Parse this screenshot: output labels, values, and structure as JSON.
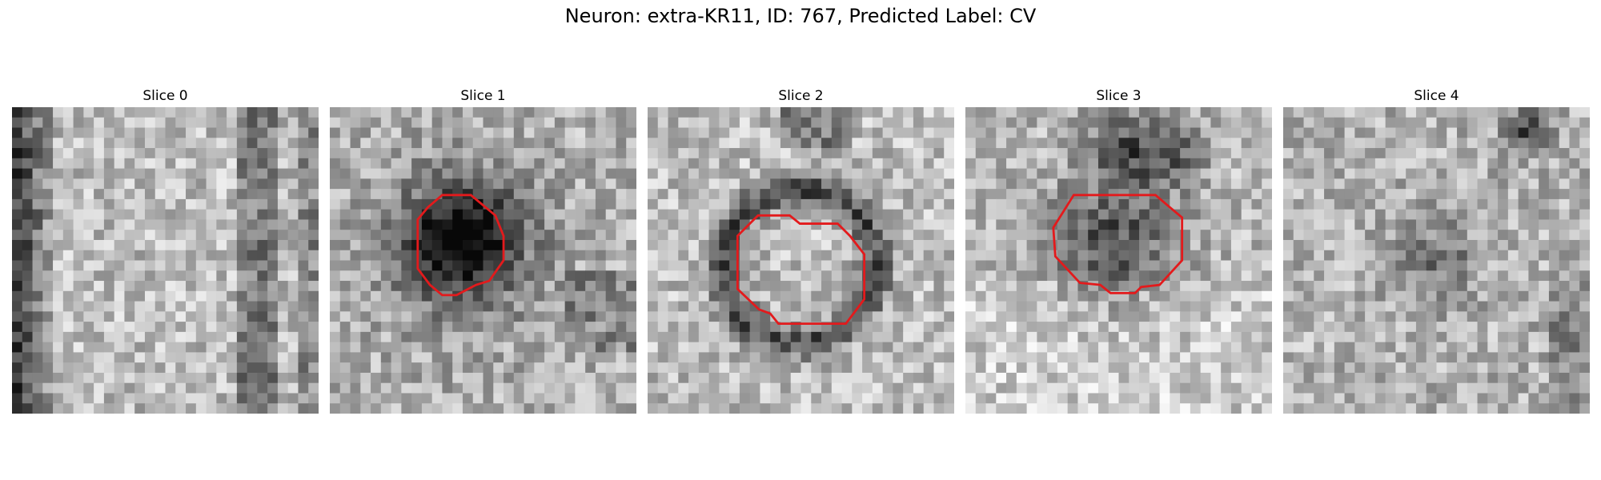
{
  "figure": {
    "title": "Neuron: extra-KR11, ID: 767, Predicted Label: CV"
  },
  "contour_color": "#e31a1c",
  "panels": [
    {
      "label": "Slice 0",
      "seed": 11,
      "style": "edges",
      "has_contour": false
    },
    {
      "label": "Slice 1",
      "seed": 23,
      "style": "blob",
      "has_contour": true
    },
    {
      "label": "Slice 2",
      "seed": 37,
      "style": "ring",
      "has_contour": true
    },
    {
      "label": "Slice 3",
      "seed": 53,
      "style": "v",
      "has_contour": true
    },
    {
      "label": "Slice 4",
      "seed": 71,
      "style": "faint",
      "has_contour": false
    }
  ]
}
